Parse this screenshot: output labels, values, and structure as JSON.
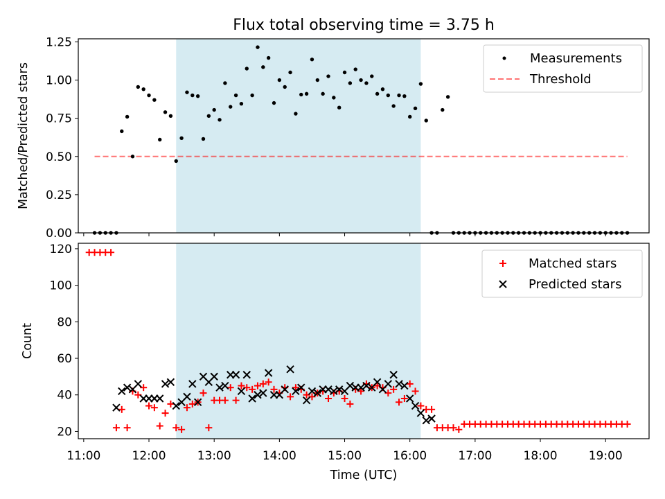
{
  "title": "Flux total observing time = 3.75 h",
  "colors": {
    "span": "#add8e6",
    "threshold": "#ff0000",
    "measurements": "#000000",
    "matched": "#ff0000",
    "predicted": "#000000"
  },
  "chart_data": [
    {
      "type": "scatter",
      "panel": "top",
      "ylabel": "Matched/Predicted stars",
      "xlim": [
        "10:55",
        "19:40"
      ],
      "ylim": [
        0,
        1.27
      ],
      "yticks": [
        "0.00",
        "0.25",
        "0.50",
        "0.75",
        "1.00",
        "1.25"
      ],
      "highlight_span": [
        "12:25",
        "16:10"
      ],
      "legend_position": "top-right",
      "legend": [
        "Measurements",
        "Threshold"
      ],
      "threshold": {
        "name": "Threshold",
        "y": 0.5,
        "x": [
          "11:10",
          "19:20"
        ]
      },
      "series": [
        {
          "name": "Measurements",
          "points": [
            [
              "11:10",
              0
            ],
            [
              "11:15",
              0
            ],
            [
              "11:20",
              0
            ],
            [
              "11:25",
              0
            ],
            [
              "11:30",
              0
            ],
            [
              "11:35",
              0.665
            ],
            [
              "11:40",
              0.76
            ],
            [
              "11:45",
              0.5
            ],
            [
              "11:50",
              0.955
            ],
            [
              "11:55",
              0.94
            ],
            [
              "12:00",
              0.9
            ],
            [
              "12:05",
              0.87
            ],
            [
              "12:10",
              0.61
            ],
            [
              "12:15",
              0.79
            ],
            [
              "12:20",
              0.765
            ],
            [
              "12:25",
              0.47
            ],
            [
              "12:30",
              0.62
            ],
            [
              "12:35",
              0.92
            ],
            [
              "12:40",
              0.9
            ],
            [
              "12:45",
              0.895
            ],
            [
              "12:50",
              0.615
            ],
            [
              "12:55",
              0.765
            ],
            [
              "13:00",
              0.805
            ],
            [
              "13:05",
              0.74
            ],
            [
              "13:10",
              0.98
            ],
            [
              "13:15",
              0.825
            ],
            [
              "13:20",
              0.9
            ],
            [
              "13:25",
              0.845
            ],
            [
              "13:30",
              1.075
            ],
            [
              "13:35",
              0.9
            ],
            [
              "13:40",
              1.215
            ],
            [
              "13:45",
              1.085
            ],
            [
              "13:50",
              1.145
            ],
            [
              "13:55",
              0.85
            ],
            [
              "14:00",
              1.0
            ],
            [
              "14:05",
              0.955
            ],
            [
              "14:10",
              1.05
            ],
            [
              "14:15",
              0.78
            ],
            [
              "14:20",
              0.905
            ],
            [
              "14:25",
              0.91
            ],
            [
              "14:30",
              1.135
            ],
            [
              "14:35",
              1.0
            ],
            [
              "14:40",
              0.91
            ],
            [
              "14:45",
              1.025
            ],
            [
              "14:50",
              0.885
            ],
            [
              "14:55",
              0.82
            ],
            [
              "15:00",
              1.05
            ],
            [
              "15:05",
              0.98
            ],
            [
              "15:10",
              1.07
            ],
            [
              "15:15",
              1.0
            ],
            [
              "15:20",
              0.98
            ],
            [
              "15:25",
              1.025
            ],
            [
              "15:30",
              0.91
            ],
            [
              "15:35",
              0.94
            ],
            [
              "15:40",
              0.9
            ],
            [
              "15:45",
              0.83
            ],
            [
              "15:50",
              0.9
            ],
            [
              "15:55",
              0.895
            ],
            [
              "16:00",
              0.76
            ],
            [
              "16:05",
              0.815
            ],
            [
              "16:10",
              0.975
            ],
            [
              "16:15",
              0.735
            ],
            [
              "16:20",
              0
            ],
            [
              "16:25",
              0
            ],
            [
              "16:30",
              0.805
            ],
            [
              "16:35",
              0.89
            ],
            [
              "16:40",
              0
            ],
            [
              "16:45",
              0
            ],
            [
              "16:50",
              0
            ],
            [
              "16:55",
              0
            ],
            [
              "17:00",
              0
            ],
            [
              "17:05",
              0
            ],
            [
              "17:10",
              0
            ],
            [
              "17:15",
              0
            ],
            [
              "17:20",
              0
            ],
            [
              "17:25",
              0
            ],
            [
              "17:30",
              0
            ],
            [
              "17:35",
              0
            ],
            [
              "17:40",
              0
            ],
            [
              "17:45",
              0
            ],
            [
              "17:50",
              0
            ],
            [
              "17:55",
              0
            ],
            [
              "18:00",
              0
            ],
            [
              "18:05",
              0
            ],
            [
              "18:10",
              0
            ],
            [
              "18:15",
              0
            ],
            [
              "18:20",
              0
            ],
            [
              "18:25",
              0
            ],
            [
              "18:30",
              0
            ],
            [
              "18:35",
              0
            ],
            [
              "18:40",
              0
            ],
            [
              "18:45",
              0
            ],
            [
              "18:50",
              0
            ],
            [
              "18:55",
              0
            ],
            [
              "19:00",
              0
            ],
            [
              "19:05",
              0
            ],
            [
              "19:10",
              0
            ],
            [
              "19:15",
              0
            ],
            [
              "19:20",
              0
            ]
          ]
        }
      ]
    },
    {
      "type": "scatter",
      "panel": "bottom",
      "xlabel": "Time (UTC)",
      "ylabel": "Count",
      "xlim": [
        "10:55",
        "19:40"
      ],
      "ylim": [
        16,
        123
      ],
      "xticks": [
        "11:00",
        "12:00",
        "13:00",
        "14:00",
        "15:00",
        "16:00",
        "17:00",
        "18:00",
        "19:00"
      ],
      "yticks": [
        "20",
        "40",
        "60",
        "80",
        "100",
        "120"
      ],
      "highlight_span": [
        "12:25",
        "16:10"
      ],
      "legend_position": "top-right",
      "legend": [
        "Matched stars",
        "Predicted stars"
      ],
      "series": [
        {
          "name": "Matched stars",
          "points": [
            [
              "11:05",
              118
            ],
            [
              "11:10",
              118
            ],
            [
              "11:15",
              118
            ],
            [
              "11:20",
              118
            ],
            [
              "11:25",
              118
            ],
            [
              "11:30",
              22
            ],
            [
              "11:35",
              32
            ],
            [
              "11:40",
              22
            ],
            [
              "11:45",
              42
            ],
            [
              "11:50",
              40
            ],
            [
              "11:55",
              44
            ],
            [
              "12:00",
              34
            ],
            [
              "12:05",
              33
            ],
            [
              "12:10",
              23
            ],
            [
              "12:15",
              30
            ],
            [
              "12:20",
              35
            ],
            [
              "12:25",
              22
            ],
            [
              "12:30",
              21
            ],
            [
              "12:35",
              33
            ],
            [
              "12:40",
              35
            ],
            [
              "12:45",
              36
            ],
            [
              "12:50",
              41
            ],
            [
              "12:55",
              22
            ],
            [
              "13:00",
              37
            ],
            [
              "13:05",
              37
            ],
            [
              "13:10",
              37
            ],
            [
              "13:15",
              44
            ],
            [
              "13:20",
              37
            ],
            [
              "13:25",
              45
            ],
            [
              "13:30",
              44
            ],
            [
              "13:35",
              43
            ],
            [
              "13:40",
              45
            ],
            [
              "13:45",
              46
            ],
            [
              "13:50",
              47
            ],
            [
              "13:55",
              43
            ],
            [
              "14:00",
              41
            ],
            [
              "14:05",
              44
            ],
            [
              "14:10",
              39
            ],
            [
              "14:15",
              44
            ],
            [
              "14:20",
              43
            ],
            [
              "14:25",
              40
            ],
            [
              "14:30",
              39
            ],
            [
              "14:35",
              41
            ],
            [
              "14:40",
              42
            ],
            [
              "14:45",
              38
            ],
            [
              "14:50",
              41
            ],
            [
              "14:55",
              42
            ],
            [
              "15:00",
              38
            ],
            [
              "15:05",
              35
            ],
            [
              "15:10",
              43
            ],
            [
              "15:15",
              42
            ],
            [
              "15:20",
              46
            ],
            [
              "15:25",
              44
            ],
            [
              "15:30",
              45
            ],
            [
              "15:35",
              44
            ],
            [
              "15:40",
              41
            ],
            [
              "15:45",
              43
            ],
            [
              "15:50",
              36
            ],
            [
              "15:55",
              38
            ],
            [
              "16:00",
              46
            ],
            [
              "16:05",
              42
            ],
            [
              "16:10",
              34
            ],
            [
              "16:15",
              32
            ],
            [
              "16:20",
              32
            ],
            [
              "16:25",
              22
            ],
            [
              "16:30",
              22
            ],
            [
              "16:35",
              22
            ],
            [
              "16:40",
              22
            ],
            [
              "16:45",
              21
            ],
            [
              "16:50",
              24
            ],
            [
              "16:55",
              24
            ],
            [
              "17:00",
              24
            ],
            [
              "17:05",
              24
            ],
            [
              "17:10",
              24
            ],
            [
              "17:15",
              24
            ],
            [
              "17:20",
              24
            ],
            [
              "17:25",
              24
            ],
            [
              "17:30",
              24
            ],
            [
              "17:35",
              24
            ],
            [
              "17:40",
              24
            ],
            [
              "17:45",
              24
            ],
            [
              "17:50",
              24
            ],
            [
              "17:55",
              24
            ],
            [
              "18:00",
              24
            ],
            [
              "18:05",
              24
            ],
            [
              "18:10",
              24
            ],
            [
              "18:15",
              24
            ],
            [
              "18:20",
              24
            ],
            [
              "18:25",
              24
            ],
            [
              "18:30",
              24
            ],
            [
              "18:35",
              24
            ],
            [
              "18:40",
              24
            ],
            [
              "18:45",
              24
            ],
            [
              "18:50",
              24
            ],
            [
              "18:55",
              24
            ],
            [
              "19:00",
              24
            ],
            [
              "19:05",
              24
            ],
            [
              "19:10",
              24
            ],
            [
              "19:15",
              24
            ],
            [
              "19:20",
              24
            ]
          ]
        },
        {
          "name": "Predicted stars",
          "points": [
            [
              "11:30",
              33
            ],
            [
              "11:35",
              42
            ],
            [
              "11:40",
              44
            ],
            [
              "11:45",
              43
            ],
            [
              "11:50",
              46
            ],
            [
              "11:55",
              38
            ],
            [
              "12:00",
              38
            ],
            [
              "12:05",
              38
            ],
            [
              "12:10",
              38
            ],
            [
              "12:15",
              46
            ],
            [
              "12:20",
              47
            ],
            [
              "12:25",
              34
            ],
            [
              "12:30",
              36
            ],
            [
              "12:35",
              39
            ],
            [
              "12:40",
              46
            ],
            [
              "12:45",
              36
            ],
            [
              "12:50",
              50
            ],
            [
              "12:55",
              47
            ],
            [
              "13:00",
              50
            ],
            [
              "13:05",
              44
            ],
            [
              "13:10",
              45
            ],
            [
              "13:15",
              51
            ],
            [
              "13:20",
              51
            ],
            [
              "13:25",
              42
            ],
            [
              "13:30",
              51
            ],
            [
              "13:35",
              38
            ],
            [
              "13:40",
              40
            ],
            [
              "13:45",
              41
            ],
            [
              "13:50",
              52
            ],
            [
              "13:55",
              40
            ],
            [
              "14:00",
              40
            ],
            [
              "14:05",
              43
            ],
            [
              "14:10",
              54
            ],
            [
              "14:15",
              42
            ],
            [
              "14:20",
              44
            ],
            [
              "14:25",
              37
            ],
            [
              "14:30",
              42
            ],
            [
              "14:35",
              41
            ],
            [
              "14:40",
              43
            ],
            [
              "14:45",
              43
            ],
            [
              "14:50",
              42
            ],
            [
              "14:55",
              43
            ],
            [
              "15:00",
              42
            ],
            [
              "15:05",
              45
            ],
            [
              "15:10",
              44
            ],
            [
              "15:15",
              44
            ],
            [
              "15:20",
              45
            ],
            [
              "15:25",
              44
            ],
            [
              "15:30",
              47
            ],
            [
              "15:35",
              43
            ],
            [
              "15:40",
              46
            ],
            [
              "15:45",
              51
            ],
            [
              "15:50",
              46
            ],
            [
              "15:55",
              45
            ],
            [
              "16:00",
              38
            ],
            [
              "16:05",
              34
            ],
            [
              "16:10",
              30
            ],
            [
              "16:15",
              26
            ],
            [
              "16:20",
              27
            ]
          ]
        }
      ]
    }
  ]
}
